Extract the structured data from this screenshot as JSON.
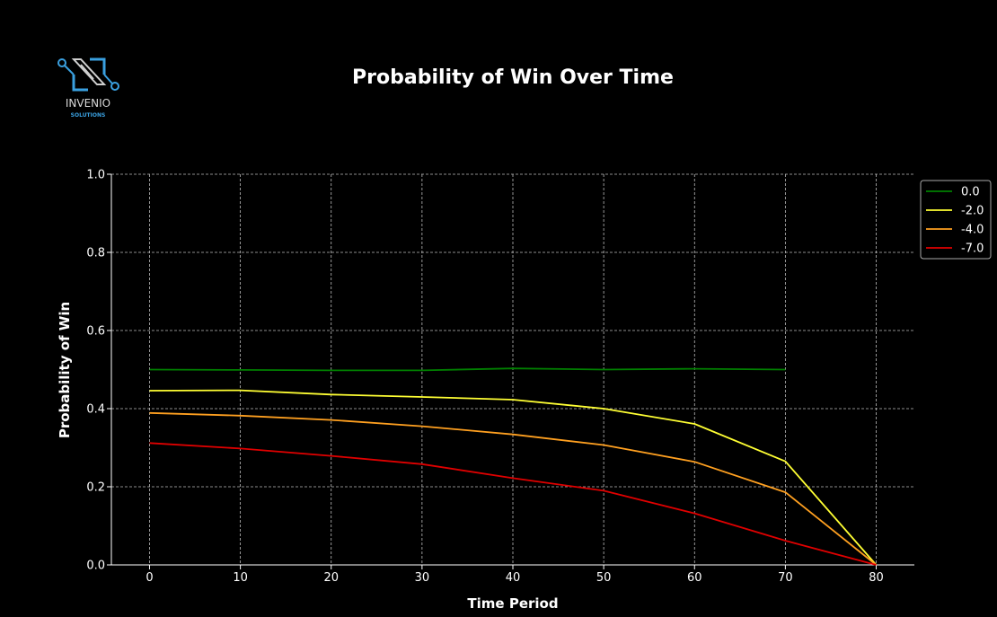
{
  "logo": {
    "name": "INVENIO",
    "tagline": "SOLUTIONS",
    "color": "#3aa0e0"
  },
  "chart_data": {
    "type": "line",
    "title": "Probability of Win Over Time",
    "xlabel": "Time Period",
    "ylabel": "Probability of Win",
    "xlim": [
      -4.2,
      84.2
    ],
    "ylim": [
      0.0,
      1.0
    ],
    "xticks": [
      0,
      10,
      20,
      30,
      40,
      50,
      60,
      70,
      80
    ],
    "yticks": [
      0.0,
      0.2,
      0.4,
      0.6,
      0.8,
      1.0
    ],
    "grid": true,
    "legend_position": "upper-right-outside",
    "series": [
      {
        "name": "0.0",
        "color": "#008000",
        "x": [
          0,
          10,
          20,
          30,
          40,
          50,
          60,
          70
        ],
        "y": [
          0.5,
          0.499,
          0.498,
          0.498,
          0.503,
          0.5,
          0.502,
          0.5
        ]
      },
      {
        "name": "-2.0",
        "color": "#ffff33",
        "x": [
          0,
          10,
          20,
          30,
          40,
          50,
          60,
          70,
          80
        ],
        "y": [
          0.446,
          0.447,
          0.436,
          0.43,
          0.423,
          0.4,
          0.361,
          0.265,
          0.0
        ]
      },
      {
        "name": "-4.0",
        "color": "#ffa020",
        "x": [
          0,
          10,
          20,
          30,
          40,
          50,
          60,
          70,
          80
        ],
        "y": [
          0.389,
          0.382,
          0.371,
          0.355,
          0.334,
          0.307,
          0.264,
          0.186,
          0.0
        ]
      },
      {
        "name": "-7.0",
        "color": "#e00000",
        "x": [
          0,
          10,
          20,
          30,
          40,
          50,
          60,
          70,
          80
        ],
        "y": [
          0.312,
          0.298,
          0.279,
          0.258,
          0.222,
          0.19,
          0.132,
          0.062,
          0.0
        ]
      }
    ]
  }
}
